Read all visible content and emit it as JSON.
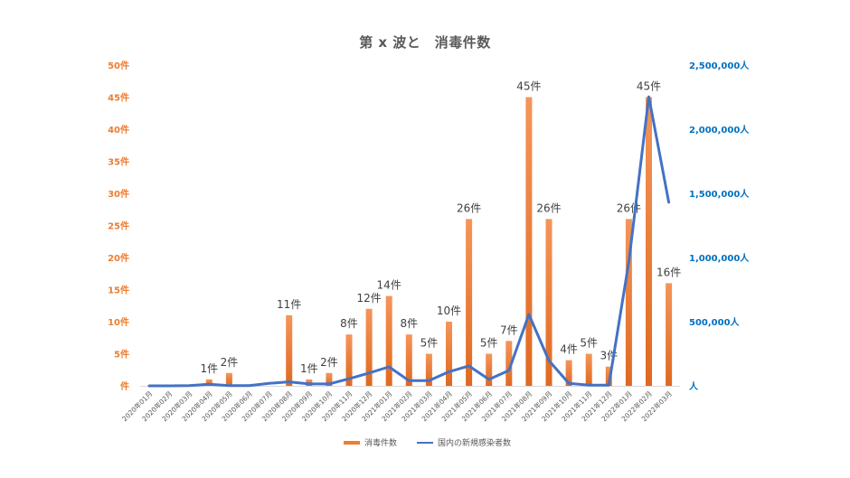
{
  "chart_data": {
    "type": "bar+line",
    "title": "第 x 波と　消毒件数",
    "categories": [
      "2020年01月",
      "2020年02月",
      "2020年03月",
      "2020年04月",
      "2020年05月",
      "2020年06月",
      "2020年07月",
      "2020年08月",
      "2020年09月",
      "2020年10月",
      "2020年11月",
      "2020年12月",
      "2021年01月",
      "2021年02月",
      "2021年03月",
      "2021年04月",
      "2021年05月",
      "2021年06月",
      "2021年07月",
      "2021年08月",
      "2021年09月",
      "2021年10月",
      "2021年11月",
      "2021年12月",
      "2022年01月",
      "2022年02月",
      "2022年03月"
    ],
    "series": [
      {
        "name": "消毒件数",
        "type": "bar",
        "axis": "left",
        "color": "#ED7D31",
        "values": [
          0,
          0,
          0,
          1,
          2,
          0,
          0,
          11,
          1,
          2,
          8,
          12,
          14,
          8,
          5,
          10,
          26,
          5,
          7,
          45,
          26,
          4,
          5,
          3,
          26,
          45,
          16
        ],
        "label_suffix": "件"
      },
      {
        "name": "国内の新規感染者数",
        "type": "line",
        "axis": "right",
        "color": "#4472C4",
        "values": [
          0,
          0,
          2000,
          12000,
          2000,
          2000,
          20000,
          31000,
          15000,
          15000,
          55000,
          100000,
          148000,
          40000,
          40000,
          110000,
          155000,
          50000,
          120000,
          556000,
          197000,
          20000,
          5000,
          5000,
          965000,
          2253000,
          1430000
        ]
      }
    ],
    "left_axis": {
      "ticks": [
        "件",
        "5件",
        "10件",
        "15件",
        "20件",
        "25件",
        "30件",
        "35件",
        "40件",
        "45件",
        "50件"
      ],
      "ylim": [
        0,
        50
      ],
      "color": "#ED7D31"
    },
    "right_axis": {
      "ticks": [
        "人",
        "500,000人",
        "1,000,000人",
        "1,500,000人",
        "2,000,000人",
        "2,500,000人"
      ],
      "ylim": [
        0,
        2500000
      ],
      "color": "#0070C0"
    },
    "grid": false,
    "legend_position": "bottom"
  },
  "legend": {
    "bar_label": "消毒件数",
    "line_label": "国内の新規感染者数"
  }
}
